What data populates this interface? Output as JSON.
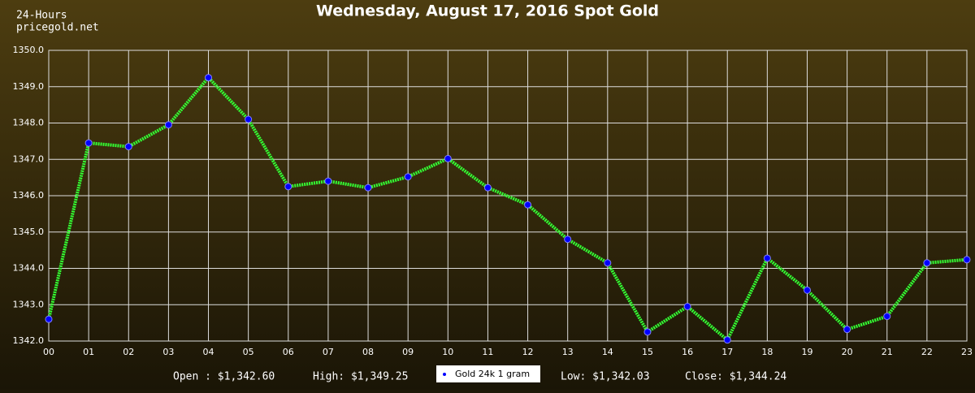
{
  "chart_data": {
    "type": "line",
    "title": "Wednesday, August 17, 2016 Spot Gold",
    "corner_text": [
      "24-Hours",
      "pricegold.net"
    ],
    "categories": [
      "00",
      "01",
      "02",
      "03",
      "04",
      "05",
      "06",
      "07",
      "08",
      "09",
      "10",
      "11",
      "12",
      "13",
      "14",
      "15",
      "16",
      "17",
      "18",
      "19",
      "20",
      "21",
      "22",
      "23"
    ],
    "series": [
      {
        "name": "Gold 24k 1 gram",
        "color": "#33ff33",
        "marker_color": "#0000ff",
        "values": [
          1342.6,
          1347.45,
          1347.35,
          1347.95,
          1349.25,
          1348.1,
          1346.25,
          1346.4,
          1346.22,
          1346.52,
          1347.02,
          1346.22,
          1345.75,
          1344.8,
          1344.15,
          1342.25,
          1342.95,
          1342.03,
          1344.28,
          1343.4,
          1342.32,
          1342.68,
          1344.15,
          1344.24
        ]
      }
    ],
    "ylim": [
      1342,
      1350
    ],
    "yticks": [
      {
        "value": 1342,
        "label": "1342.0"
      },
      {
        "value": 1343,
        "label": "1343.0"
      },
      {
        "value": 1344,
        "label": "1344.0"
      },
      {
        "value": 1345,
        "label": "1345.0"
      },
      {
        "value": 1346,
        "label": "1346.0"
      },
      {
        "value": 1347,
        "label": "1347.0"
      },
      {
        "value": 1348,
        "label": "1348.0"
      },
      {
        "value": 1349,
        "label": "1349.0"
      },
      {
        "value": 1350,
        "label": "1350.0"
      }
    ],
    "grid": true,
    "summary": [
      "Open : $1,342.60",
      "High: $1,349.25",
      "Low: $1,342.03",
      "Close: $1,344.24"
    ]
  }
}
